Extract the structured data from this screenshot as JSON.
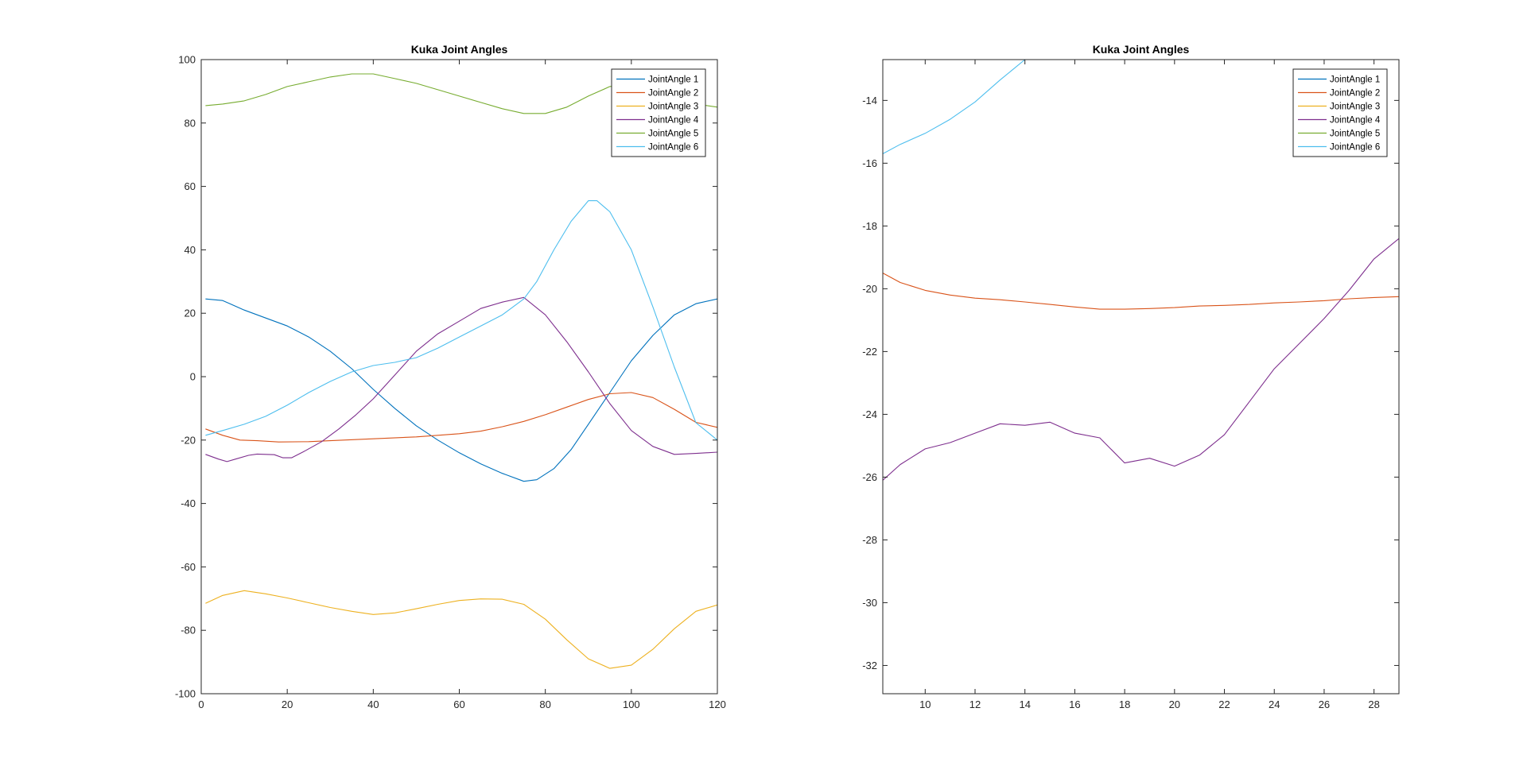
{
  "chart_data": [
    {
      "type": "line",
      "title": "Kuka Joint Angles",
      "xlabel": "",
      "ylabel": "",
      "xlim": [
        0,
        120
      ],
      "ylim": [
        -100,
        100
      ],
      "xticks": [
        0,
        20,
        40,
        60,
        80,
        100,
        120
      ],
      "yticks": [
        -100,
        -80,
        -60,
        -40,
        -20,
        0,
        20,
        40,
        60,
        80,
        100
      ],
      "grid": false,
      "legend_position": "top-right",
      "series": [
        {
          "name": "JointAngle 1",
          "color": "#0072BD",
          "x": [
            1,
            5,
            10,
            15,
            20,
            25,
            30,
            35,
            40,
            45,
            50,
            55,
            60,
            65,
            70,
            75,
            78,
            82,
            86,
            90,
            95,
            100,
            105,
            110,
            115,
            120
          ],
          "y": [
            24.5,
            24,
            21,
            18.5,
            16,
            12.5,
            8,
            2.5,
            -4,
            -10,
            -15.5,
            -20,
            -24,
            -27.5,
            -30.5,
            -33,
            -32.5,
            -29,
            -23,
            -15,
            -5,
            5,
            13,
            19.5,
            23,
            24.5
          ]
        },
        {
          "name": "JointAngle 2",
          "color": "#D95319",
          "x": [
            1,
            5,
            9,
            13,
            18,
            25,
            30,
            40,
            50,
            60,
            65,
            70,
            75,
            80,
            85,
            90,
            95,
            100,
            105,
            110,
            115,
            120
          ],
          "y": [
            -16.5,
            -18.5,
            -20,
            -20.2,
            -20.6,
            -20.5,
            -20.2,
            -19.6,
            -19,
            -18,
            -17.2,
            -15.8,
            -14.1,
            -12,
            -9.6,
            -7.2,
            -5.4,
            -5,
            -6.6,
            -10.3,
            -14.4,
            -16
          ]
        },
        {
          "name": "JointAngle 3",
          "color": "#EDB120",
          "x": [
            1,
            5,
            10,
            15,
            20,
            25,
            30,
            35,
            40,
            45,
            50,
            55,
            60,
            65,
            70,
            75,
            80,
            85,
            90,
            95,
            100,
            105,
            110,
            115,
            120
          ],
          "y": [
            -71.5,
            -69,
            -67.5,
            -68.5,
            -69.8,
            -71.3,
            -72.8,
            -74,
            -75,
            -74.5,
            -73.2,
            -71.8,
            -70.6,
            -70.1,
            -70.2,
            -71.8,
            -76.5,
            -83,
            -89,
            -92,
            -91,
            -86,
            -79.5,
            -74,
            -72
          ]
        },
        {
          "name": "JointAngle 4",
          "color": "#7E2F8E",
          "x": [
            1,
            4,
            6,
            8,
            11,
            13,
            15,
            17,
            19,
            21,
            24,
            28,
            32,
            36,
            40,
            45,
            50,
            55,
            60,
            65,
            70,
            75,
            80,
            85,
            90,
            95,
            100,
            105,
            110,
            115,
            120
          ],
          "y": [
            -24.5,
            -26,
            -26.8,
            -26,
            -24.8,
            -24.4,
            -24.5,
            -24.6,
            -25.6,
            -25.6,
            -23.5,
            -20.5,
            -16.5,
            -12,
            -7,
            0.5,
            8,
            13.5,
            17.5,
            21.5,
            23.5,
            25,
            19.5,
            11,
            1.5,
            -8.5,
            -17,
            -22,
            -24.5,
            -24.2,
            -23.8
          ]
        },
        {
          "name": "JointAngle 5",
          "color": "#77AC30",
          "x": [
            1,
            5,
            10,
            15,
            20,
            25,
            30,
            35,
            40,
            45,
            50,
            55,
            60,
            65,
            70,
            75,
            80,
            85,
            90,
            95,
            100,
            105,
            110,
            115,
            120
          ],
          "y": [
            85.5,
            86,
            87,
            89,
            91.5,
            93,
            94.5,
            95.5,
            95.5,
            94,
            92.5,
            90.5,
            88.5,
            86.5,
            84.5,
            83,
            83,
            85,
            88.5,
            91.5,
            92.5,
            91,
            88,
            86,
            85
          ]
        },
        {
          "name": "JointAngle 6",
          "color": "#4DBEEE",
          "x": [
            1,
            5,
            10,
            15,
            20,
            25,
            30,
            35,
            40,
            45,
            50,
            55,
            60,
            65,
            70,
            75,
            78,
            82,
            86,
            90,
            92,
            95,
            100,
            105,
            110,
            115,
            120
          ],
          "y": [
            -18.5,
            -17,
            -15,
            -12.5,
            -9,
            -5,
            -1.5,
            1.5,
            3.5,
            4.5,
            6,
            9,
            12.5,
            16,
            19.5,
            24.5,
            30,
            40,
            49,
            55.5,
            55.5,
            52,
            40,
            22,
            3,
            -14.5,
            -20
          ]
        }
      ]
    },
    {
      "type": "line",
      "title": "Kuka Joint Angles",
      "xlabel": "",
      "ylabel": "",
      "xlim": [
        8.3,
        29
      ],
      "ylim": [
        -32.9,
        -12.7
      ],
      "xticks": [
        10,
        12,
        14,
        16,
        18,
        20,
        22,
        24,
        26,
        28
      ],
      "yticks": [
        -32,
        -30,
        -28,
        -26,
        -24,
        -22,
        -20,
        -18,
        -16,
        -14
      ],
      "grid": false,
      "legend_position": "top-right",
      "series": [
        {
          "name": "JointAngle 1",
          "color": "#0072BD",
          "x": [],
          "y": []
        },
        {
          "name": "JointAngle 2",
          "color": "#D95319",
          "x": [
            8.3,
            9,
            10,
            11,
            12,
            13,
            14,
            15,
            16,
            17,
            18,
            19,
            20,
            21,
            22,
            23,
            24,
            25,
            26,
            27,
            28,
            29
          ],
          "y": [
            -19.5,
            -19.8,
            -20.05,
            -20.2,
            -20.3,
            -20.35,
            -20.42,
            -20.5,
            -20.58,
            -20.65,
            -20.65,
            -20.63,
            -20.6,
            -20.55,
            -20.53,
            -20.5,
            -20.45,
            -20.42,
            -20.38,
            -20.32,
            -20.28,
            -20.25
          ]
        },
        {
          "name": "JointAngle 3",
          "color": "#EDB120",
          "x": [],
          "y": []
        },
        {
          "name": "JointAngle 4",
          "color": "#7E2F8E",
          "x": [
            8.3,
            9,
            10,
            11,
            12,
            13,
            14,
            15,
            16,
            17,
            18,
            19,
            20,
            21,
            22,
            23,
            24,
            25,
            26,
            27,
            28,
            29
          ],
          "y": [
            -26.1,
            -25.6,
            -25.1,
            -24.9,
            -24.6,
            -24.3,
            -24.35,
            -24.25,
            -24.6,
            -24.75,
            -25.55,
            -25.4,
            -25.65,
            -25.3,
            -24.65,
            -23.6,
            -22.55,
            -21.75,
            -20.95,
            -20.05,
            -19.05,
            -18.4
          ]
        },
        {
          "name": "JointAngle 5",
          "color": "#77AC30",
          "x": [],
          "y": []
        },
        {
          "name": "JointAngle 6",
          "color": "#4DBEEE",
          "x": [
            8.3,
            9,
            10,
            11,
            12,
            13,
            14
          ],
          "y": [
            -15.7,
            -15.4,
            -15.05,
            -14.6,
            -14.05,
            -13.35,
            -12.7
          ]
        }
      ]
    }
  ]
}
